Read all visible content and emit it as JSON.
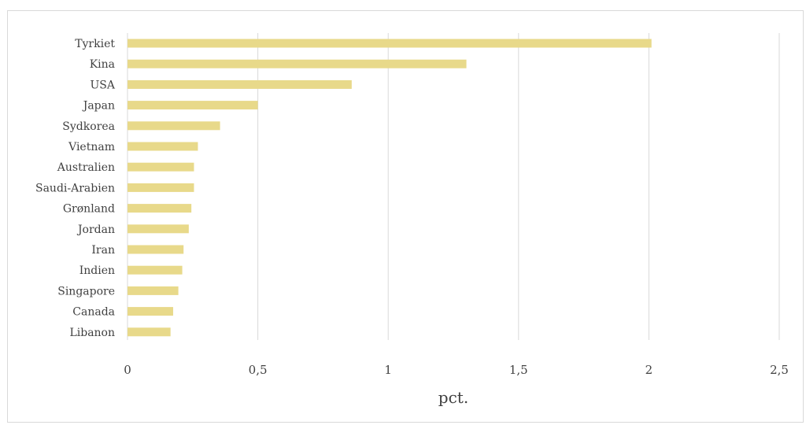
{
  "chart_data": {
    "type": "bar",
    "orientation": "horizontal",
    "categories": [
      "Tyrkiet",
      "Kina",
      "USA",
      "Japan",
      "Sydkorea",
      "Vietnam",
      "Australien",
      "Saudi-Arabien",
      "Grønland",
      "Jordan",
      "Iran",
      "Indien",
      "Singapore",
      "Canada",
      "Libanon"
    ],
    "values": [
      2.01,
      1.3,
      0.86,
      0.5,
      0.355,
      0.27,
      0.255,
      0.255,
      0.245,
      0.235,
      0.215,
      0.21,
      0.195,
      0.175,
      0.165
    ],
    "xlabel": "pct.",
    "xlim": [
      0,
      2.5
    ],
    "xticks": [
      0,
      0.5,
      1,
      1.5,
      2,
      2.5
    ],
    "xtick_labels": [
      "0",
      "0,5",
      "1",
      "1,5",
      "2",
      "2,5"
    ],
    "grid": true,
    "bar_color": "#e8d98a",
    "grid_color": "#d9d9d9"
  }
}
